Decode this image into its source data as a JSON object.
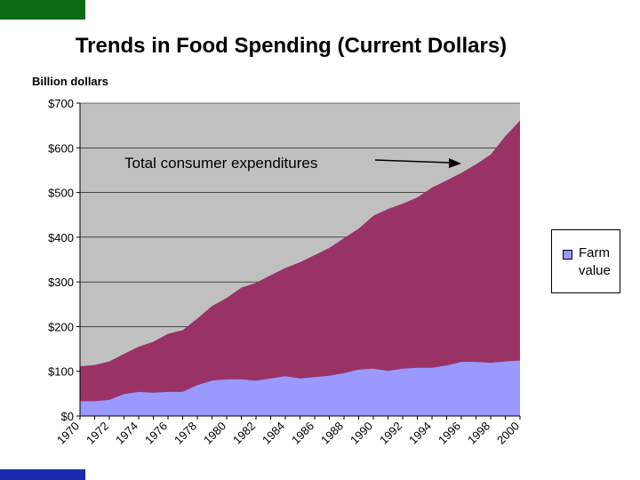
{
  "slide": {
    "title": "Trends in Food Spending (Current Dollars)"
  },
  "colors": {
    "plot_bg": "#c0c0c0",
    "total": "#993366",
    "farm": "#9999ff",
    "brand_green": "#0a6b12",
    "brand_blue": "#1b2bb0"
  },
  "chart_data": {
    "type": "area",
    "title": "Trends in Food Spending (Current Dollars)",
    "ylabel": "Billion dollars",
    "xlabel": "",
    "ylim": [
      0,
      700
    ],
    "yticks": [
      0,
      100,
      200,
      300,
      400,
      500,
      600,
      700
    ],
    "ytick_labels": [
      "$0",
      "$100",
      "$200",
      "$300",
      "$400",
      "$500",
      "$600",
      "$700"
    ],
    "x": [
      1970,
      1971,
      1972,
      1973,
      1974,
      1975,
      1976,
      1977,
      1978,
      1979,
      1980,
      1981,
      1982,
      1983,
      1984,
      1985,
      1986,
      1987,
      1988,
      1989,
      1990,
      1991,
      1992,
      1993,
      1994,
      1995,
      1996,
      1997,
      1998,
      1999,
      2000
    ],
    "xtick_labels": [
      "1970",
      "1972",
      "1974",
      "1976",
      "1978",
      "1980",
      "1982",
      "1984",
      "1986",
      "1988",
      "1990",
      "1992",
      "1994",
      "1996",
      "1998",
      "2000"
    ],
    "series": [
      {
        "name": "Total consumer expenditures",
        "color": "#993366",
        "values": [
          111,
          114,
          122,
          139,
          155,
          166,
          184,
          192,
          218,
          246,
          264,
          287,
          298,
          315,
          331,
          344,
          360,
          376,
          398,
          419,
          448,
          463,
          475,
          489,
          511,
          527,
          544,
          563,
          585,
          626,
          661
        ]
      },
      {
        "name": "Farm value",
        "color": "#9999ff",
        "values": [
          33,
          33,
          36,
          49,
          54,
          52,
          54,
          54,
          69,
          79,
          82,
          82,
          79,
          84,
          89,
          84,
          87,
          90,
          96,
          104,
          106,
          101,
          106,
          108,
          108,
          113,
          121,
          121,
          119,
          122,
          124
        ]
      }
    ],
    "annotation": {
      "text": "Total consumer expenditures",
      "arrow_points_to": "Total consumer expenditures"
    },
    "legend": {
      "position": "right",
      "entries": [
        "Farm\nvalue"
      ],
      "lines": [
        "Farm",
        "value"
      ]
    },
    "grid": true
  }
}
